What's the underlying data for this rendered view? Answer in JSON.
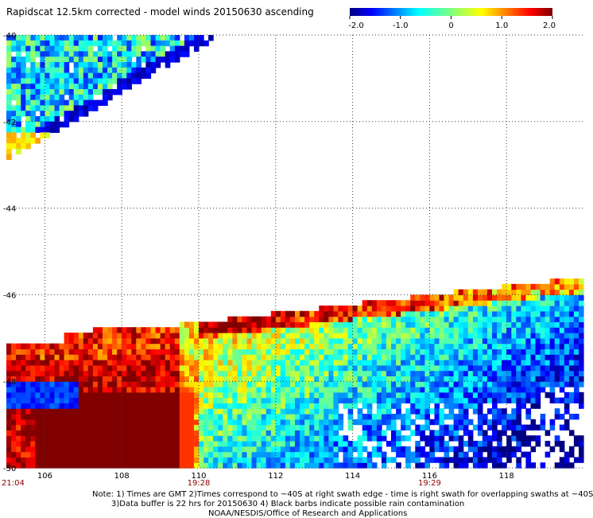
{
  "chart_data": {
    "type": "heatmap",
    "title": "Rapidscat 12.5km corrected - model winds 20150630 ascending",
    "xlim": [
      105,
      120
    ],
    "ylim": [
      -50,
      -40
    ],
    "x_ticks": [
      "106",
      "108",
      "110",
      "112",
      "114",
      "116",
      "118"
    ],
    "x_tick_values": [
      106,
      108,
      110,
      112,
      114,
      116,
      118
    ],
    "y_ticks": [
      "-40",
      "-42",
      "-44",
      "-46",
      "-48",
      "-50"
    ],
    "y_tick_values": [
      -40,
      -42,
      -44,
      -46,
      -48,
      -50
    ],
    "time_labels": [
      {
        "label": "21:04",
        "x": 105
      },
      {
        "label": "19:28",
        "x": 110
      },
      {
        "label": "19:29",
        "x": 116
      }
    ],
    "colorbar": {
      "min": -2.0,
      "max": 2.0,
      "ticks": [
        "-2.0",
        "-1.0",
        "0",
        "1.0",
        "2.0"
      ],
      "tick_values": [
        -2.0,
        -1.0,
        0,
        1.0,
        2.0
      ]
    },
    "grid": true
  },
  "notes": {
    "line1": "Note: 1) Times are GMT 2)Times correspond to ~40S at right swath edge - time is right swath for overlapping swaths at ~40S",
    "line2": "3)Data buffer is 22 hrs for 20150630 4) Black barbs indicate possible rain contamination",
    "line3": "NOAA/NESDIS/Office of Research and Applications"
  },
  "colors": {
    "grid": "#3a3a3a",
    "time_label": "#8b0000"
  }
}
